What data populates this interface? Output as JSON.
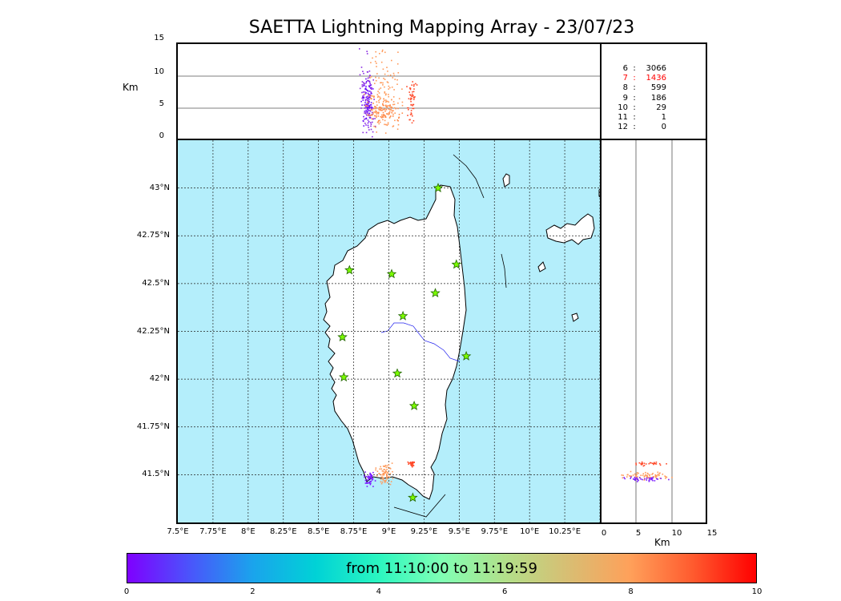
{
  "title": "SAETTA Lightning Mapping Array - 23/07/23",
  "altitude_panel": {
    "ylabel": "Km",
    "y_ticks": [
      "15",
      "10",
      "5",
      "0"
    ]
  },
  "counts": [
    {
      "level": "6",
      "value": "3066",
      "highlight": false
    },
    {
      "level": "7",
      "value": "1436",
      "highlight": true
    },
    {
      "level": "8",
      "value": "599",
      "highlight": false
    },
    {
      "level": "9",
      "value": "186",
      "highlight": false
    },
    {
      "level": "10",
      "value": "29",
      "highlight": false
    },
    {
      "level": "11",
      "value": "1",
      "highlight": false
    },
    {
      "level": "12",
      "value": "0",
      "highlight": false
    }
  ],
  "map": {
    "lat_labels": [
      "43°N",
      "42.75°N",
      "42.5°N",
      "42.25°N",
      "42°N",
      "41.75°N",
      "41.5°N"
    ],
    "lon_labels": [
      "7.5°E",
      "7.75°E",
      "8°E",
      "8.25°E",
      "8.5°E",
      "8.75°E",
      "9°E",
      "9.25°E",
      "9.5°E",
      "9.75°E",
      "10°E",
      "10.25°E"
    ],
    "sea_color": "#b4eefb",
    "land_color": "#ffffff",
    "station_color": "#7cfc00",
    "stations": [
      {
        "lon": 9.35,
        "lat": 43.0
      },
      {
        "lon": 9.48,
        "lat": 42.6
      },
      {
        "lon": 8.72,
        "lat": 42.57
      },
      {
        "lon": 9.02,
        "lat": 42.55
      },
      {
        "lon": 9.33,
        "lat": 42.45
      },
      {
        "lon": 9.1,
        "lat": 42.33
      },
      {
        "lon": 8.67,
        "lat": 42.22
      },
      {
        "lon": 9.55,
        "lat": 42.12
      },
      {
        "lon": 9.06,
        "lat": 42.03
      },
      {
        "lon": 8.68,
        "lat": 42.01
      },
      {
        "lon": 9.18,
        "lat": 41.86
      },
      {
        "lon": 9.17,
        "lat": 41.38
      }
    ]
  },
  "right_panel": {
    "x_ticks": [
      "0",
      "5",
      "10",
      "15"
    ],
    "xlabel": "Km"
  },
  "colorbar": {
    "text": "from 11:10:00 to 11:19:59",
    "ticks": [
      "0",
      "2",
      "4",
      "6",
      "8",
      "10"
    ],
    "colors": [
      "#7f00ff",
      "#4a55fb",
      "#1aa4ec",
      "#00d2d6",
      "#2bf6c0",
      "#80ffb4",
      "#b2e08a",
      "#d8be73",
      "#ffa05a",
      "#ff5a2e",
      "#ff0000"
    ]
  }
}
